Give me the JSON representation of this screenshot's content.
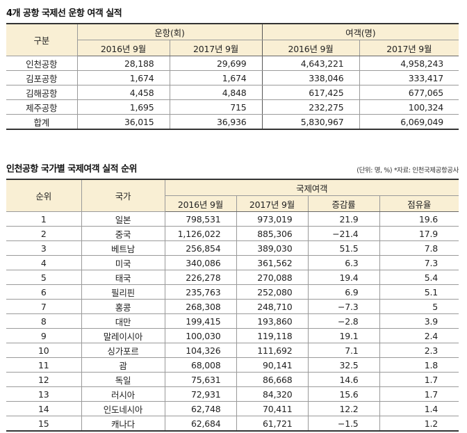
{
  "table1": {
    "title": "4개 공항 국제선 운항 여객 실적",
    "header": {
      "category": "구분",
      "flights_group": "운항(회)",
      "passengers_group": "여객(명)",
      "periods": [
        "2016년 9월",
        "2017년 9월",
        "2016년 9월",
        "2017년 9월"
      ]
    },
    "rows": [
      {
        "name": "인천공항",
        "flights_2016": "28,188",
        "flights_2017": "29,699",
        "pax_2016": "4,643,221",
        "pax_2017": "4,958,243"
      },
      {
        "name": "김포공항",
        "flights_2016": "1,674",
        "flights_2017": "1,674",
        "pax_2016": "338,046",
        "pax_2017": "333,417"
      },
      {
        "name": "김해공항",
        "flights_2016": "4,458",
        "flights_2017": "4,848",
        "pax_2016": "617,425",
        "pax_2017": "677,065"
      },
      {
        "name": "제주공항",
        "flights_2016": "1,695",
        "flights_2017": "715",
        "pax_2016": "232,275",
        "pax_2017": "100,324"
      },
      {
        "name": "합계",
        "flights_2016": "36,015",
        "flights_2017": "36,936",
        "pax_2016": "5,830,967",
        "pax_2017": "6,069,049"
      }
    ]
  },
  "table2": {
    "title": "인천공항 국가별 국제여객 실적 순위",
    "note": "(단위: 명, %) *자료: 인천국제공항공사",
    "header": {
      "rank": "순위",
      "country": "국가",
      "group": "국제여객",
      "sub": [
        "2016년 9월",
        "2017년 9월",
        "증감률",
        "점유율"
      ]
    },
    "rows": [
      {
        "rank": "1",
        "country": "일본",
        "y2016": "798,531",
        "y2017": "973,019",
        "change": "21.9",
        "share": "19.6"
      },
      {
        "rank": "2",
        "country": "중국",
        "y2016": "1,126,022",
        "y2017": "885,306",
        "change": "−21.4",
        "share": "17.9"
      },
      {
        "rank": "3",
        "country": "베트남",
        "y2016": "256,854",
        "y2017": "389,030",
        "change": "51.5",
        "share": "7.8"
      },
      {
        "rank": "4",
        "country": "미국",
        "y2016": "340,086",
        "y2017": "361,562",
        "change": "6.3",
        "share": "7.3"
      },
      {
        "rank": "5",
        "country": "태국",
        "y2016": "226,278",
        "y2017": "270,088",
        "change": "19.4",
        "share": "5.4"
      },
      {
        "rank": "6",
        "country": "필리핀",
        "y2016": "235,763",
        "y2017": "252,080",
        "change": "6.9",
        "share": "5.1"
      },
      {
        "rank": "7",
        "country": "홍콩",
        "y2016": "268,308",
        "y2017": "248,710",
        "change": "−7.3",
        "share": "5"
      },
      {
        "rank": "8",
        "country": "대만",
        "y2016": "199,415",
        "y2017": "193,860",
        "change": "−2.8",
        "share": "3.9"
      },
      {
        "rank": "9",
        "country": "말레이시아",
        "y2016": "100,030",
        "y2017": "119,118",
        "change": "19.1",
        "share": "2.4"
      },
      {
        "rank": "10",
        "country": "싱가포르",
        "y2016": "104,326",
        "y2017": "111,692",
        "change": "7.1",
        "share": "2.3"
      },
      {
        "rank": "11",
        "country": "괌",
        "y2016": "68,008",
        "y2017": "90,141",
        "change": "32.5",
        "share": "1.8"
      },
      {
        "rank": "12",
        "country": "독일",
        "y2016": "75,631",
        "y2017": "86,668",
        "change": "14.6",
        "share": "1.7"
      },
      {
        "rank": "13",
        "country": "러시아",
        "y2016": "72,931",
        "y2017": "84,320",
        "change": "15.6",
        "share": "1.7"
      },
      {
        "rank": "14",
        "country": "인도네시아",
        "y2016": "62,748",
        "y2017": "70,411",
        "change": "12.2",
        "share": "1.4"
      },
      {
        "rank": "15",
        "country": "캐나다",
        "y2016": "62,684",
        "y2017": "61,721",
        "change": "−1.5",
        "share": "1.2"
      }
    ]
  }
}
